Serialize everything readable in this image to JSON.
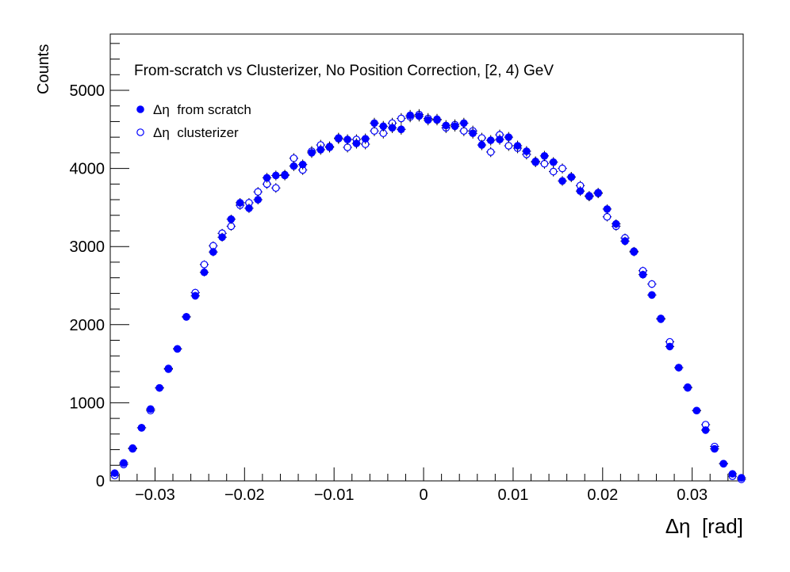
{
  "chart_data": {
    "type": "scatter",
    "title": "From-scratch vs Clusterizer, No Position Correction, [2, 4) GeV",
    "xlabel": "Δη  [rad]",
    "ylabel": "Counts",
    "xlim": [
      -0.035,
      0.0357
    ],
    "ylim": [
      0,
      5720
    ],
    "xticks": [
      -0.03,
      -0.02,
      -0.01,
      0,
      0.01,
      0.02,
      0.03
    ],
    "xtick_labels": [
      "−0.03",
      "−0.02",
      "−0.01",
      "0",
      "0.01",
      "0.02",
      "0.03"
    ],
    "yticks": [
      0,
      1000,
      2000,
      3000,
      4000,
      5000
    ],
    "ytick_labels": [
      "0",
      "1000",
      "2000",
      "3000",
      "4000",
      "5000"
    ],
    "grid": false,
    "legend_position": "top-left",
    "x": [
      -0.0345,
      -0.0335,
      -0.0325,
      -0.0315,
      -0.0305,
      -0.0295,
      -0.0285,
      -0.0275,
      -0.0265,
      -0.0255,
      -0.0245,
      -0.0235,
      -0.0225,
      -0.0215,
      -0.0205,
      -0.0195,
      -0.0185,
      -0.0175,
      -0.0165,
      -0.0155,
      -0.0145,
      -0.0135,
      -0.0125,
      -0.0115,
      -0.0105,
      -0.0095,
      -0.0085,
      -0.0075,
      -0.0065,
      -0.0055,
      -0.0045,
      -0.0035,
      -0.0025,
      -0.0015,
      -0.0005,
      0.0005,
      0.0015,
      0.0025,
      0.0035,
      0.0045,
      0.0055,
      0.0065,
      0.0075,
      0.0085,
      0.0095,
      0.0105,
      0.0115,
      0.0125,
      0.0135,
      0.0145,
      0.0155,
      0.0165,
      0.0175,
      0.0185,
      0.0195,
      0.0205,
      0.0215,
      0.0225,
      0.0235,
      0.0245,
      0.0255,
      0.0265,
      0.0275,
      0.0285,
      0.0295,
      0.0305,
      0.0315,
      0.0325,
      0.0335,
      0.0345,
      0.0355
    ],
    "series": [
      {
        "name": "Δη  from scratch",
        "marker": "filled-circle",
        "color": "#0000ff",
        "values": [
          100,
          230,
          420,
          680,
          920,
          1190,
          1430,
          1690,
          2100,
          2370,
          2670,
          2930,
          3120,
          3350,
          3560,
          3490,
          3600,
          3880,
          3910,
          3910,
          4030,
          4050,
          4200,
          4240,
          4270,
          4390,
          4370,
          4320,
          4380,
          4580,
          4540,
          4520,
          4500,
          4680,
          4670,
          4620,
          4630,
          4550,
          4540,
          4580,
          4450,
          4300,
          4360,
          4370,
          4400,
          4290,
          4220,
          4080,
          4160,
          4080,
          3840,
          3890,
          3710,
          3650,
          3690,
          3480,
          3290,
          3070,
          2930,
          2640,
          2380,
          2080,
          1720,
          1450,
          1190,
          900,
          650,
          410,
          220,
          90,
          40
        ]
      },
      {
        "name": "Δη  clusterizer",
        "marker": "open-circle",
        "color": "#0000ff",
        "values": [
          70,
          210,
          410,
          680,
          900,
          1190,
          1440,
          1690,
          2100,
          2410,
          2770,
          3010,
          3170,
          3260,
          3530,
          3560,
          3700,
          3800,
          3750,
          3920,
          4130,
          3980,
          4220,
          4300,
          4280,
          4380,
          4270,
          4370,
          4310,
          4480,
          4450,
          4580,
          4640,
          4660,
          4690,
          4640,
          4620,
          4520,
          4560,
          4480,
          4480,
          4390,
          4210,
          4430,
          4290,
          4260,
          4180,
          4090,
          4060,
          3960,
          4000,
          3890,
          3780,
          3640,
          3680,
          3380,
          3260,
          3110,
          2940,
          2690,
          2520,
          2070,
          1780,
          1450,
          1200,
          900,
          720,
          440,
          220,
          60,
          20
        ]
      }
    ]
  }
}
